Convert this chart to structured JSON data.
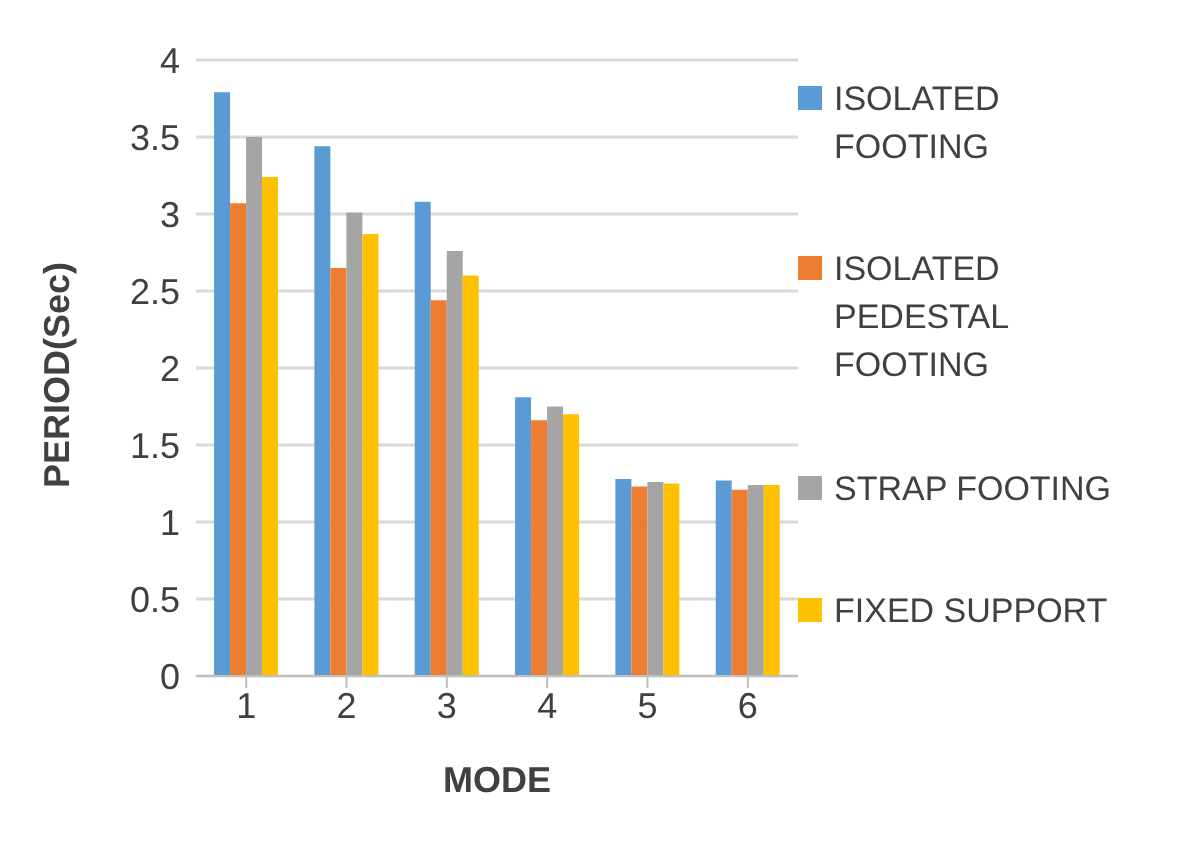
{
  "chart_data": {
    "type": "bar",
    "xlabel": "MODE",
    "ylabel": "PERIOD(Sec)",
    "categories": [
      "1",
      "2",
      "3",
      "4",
      "5",
      "6"
    ],
    "series": [
      {
        "name": "ISOLATED FOOTING",
        "color": "#5b9bd5",
        "values": [
          3.79,
          3.44,
          3.08,
          1.81,
          1.28,
          1.27
        ]
      },
      {
        "name": "ISOLATED PEDESTAL FOOTING",
        "color": "#ed7d31",
        "values": [
          3.07,
          2.65,
          2.44,
          1.66,
          1.23,
          1.21
        ]
      },
      {
        "name": "STRAP FOOTING",
        "color": "#a5a5a5",
        "values": [
          3.5,
          3.01,
          2.76,
          1.75,
          1.26,
          1.24
        ]
      },
      {
        "name": "FIXED SUPPORT",
        "color": "#ffc000",
        "values": [
          3.24,
          2.87,
          2.6,
          1.7,
          1.25,
          1.24
        ]
      }
    ],
    "ylim": [
      0,
      4
    ],
    "yticks": [
      0,
      0.5,
      1,
      1.5,
      2,
      2.5,
      3,
      3.5,
      4
    ],
    "grid": "y",
    "legend": "right"
  }
}
